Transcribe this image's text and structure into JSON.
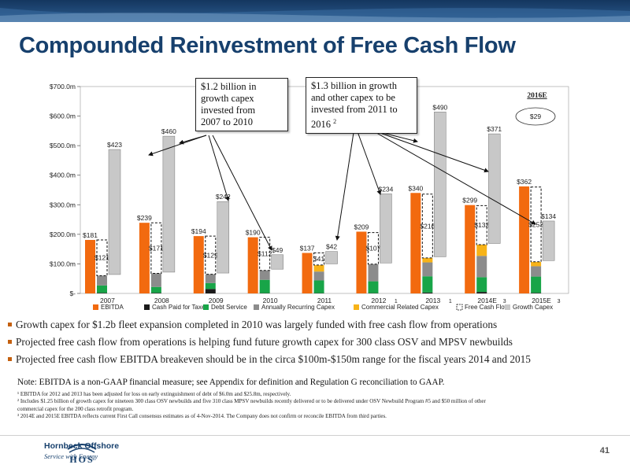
{
  "colors": {
    "title": "#17406d",
    "ebitda": "#f26a0f",
    "cash_paid_taxes": "#1a1a1a",
    "debt_service": "#18a548",
    "annually_recurring_capex": "#8c8c8c",
    "commercial_related_capex": "#f7b318",
    "growth_capex": "#c8c8c8",
    "bullet": "#c4600f"
  },
  "title": "Compounded Reinvestment of Free Cash Flow",
  "chart_data": {
    "type": "bar",
    "subtype": "waterfall",
    "ylim": [
      0,
      700
    ],
    "yticks": [
      "$-",
      "$100.0m",
      "$200.0m",
      "$300.0m",
      "$400.0m",
      "$500.0m",
      "$600.0m",
      "$700.0m"
    ],
    "categories": [
      {
        "label": "2007",
        "sup": ""
      },
      {
        "label": "2008",
        "sup": ""
      },
      {
        "label": "2009",
        "sup": ""
      },
      {
        "label": "2010",
        "sup": ""
      },
      {
        "label": "2011",
        "sup": ""
      },
      {
        "label": "2012",
        "sup": "1"
      },
      {
        "label": "2013",
        "sup": "1"
      },
      {
        "label": "2014E",
        "sup": "3"
      },
      {
        "label": "2015E",
        "sup": "3"
      }
    ],
    "ebitda": [
      181,
      239,
      194,
      190,
      137,
      209,
      340,
      299,
      362
    ],
    "ebitda_labels": [
      "$181",
      "$239",
      "$194",
      "$190",
      "$137",
      "$209",
      "$340",
      "$299",
      "$362"
    ],
    "cash_paid_taxes": [
      2,
      2,
      15,
      1,
      1,
      1,
      3,
      5,
      2
    ],
    "debt_service": [
      25,
      20,
      20,
      45,
      43,
      40,
      55,
      50,
      55
    ],
    "annually_recurring_capex": [
      33,
      46,
      30,
      32,
      30,
      58,
      47,
      72,
      35
    ],
    "commercial_related_capex": [
      0,
      0,
      0,
      0,
      22,
      0,
      15,
      38,
      15
    ],
    "free_cash_flow": [
      121,
      171,
      129,
      112,
      41,
      107,
      216,
      132,
      253
    ],
    "free_cash_flow_labels": [
      "$121",
      "$171",
      "$129",
      "$112",
      "$41",
      "$107",
      "$216",
      "$132",
      "$253"
    ],
    "growth_capex": [
      423,
      460,
      242,
      49,
      42,
      234,
      490,
      371,
      134
    ],
    "growth_capex_labels": [
      "$423",
      "$460",
      "$242",
      "$49",
      "$42",
      "$234",
      "$490",
      "$371",
      "$134"
    ],
    "legend": [
      "EBITDA",
      "Cash Paid for Taxes",
      "Debt Service",
      "Annually Recurring Capex",
      "Commercial Related Capex",
      "Free Cash Flow",
      "Growth Capex"
    ],
    "legend_position": "bottom",
    "grid": false,
    "annotation_2016": {
      "label": "2016E",
      "value": "$29"
    }
  },
  "callouts": {
    "left": [
      "$1.2 billion in",
      "growth capex",
      "invested from",
      "2007 to 2010"
    ],
    "right": [
      "$1.3 billion in growth",
      "and other capex to be",
      "invested from 2011 to",
      "2016"
    ],
    "right_sup": "2"
  },
  "bullets": [
    "Growth capex for $1.2b fleet expansion completed in 2010 was largely funded with free cash flow from operations",
    "Projected free cash flow from operations is helping fund future growth capex for 300 class OSV and MPSV newbuilds",
    "Projected free cash flow EBITDA breakeven should be in the circa $100m-$150m range for the fiscal years 2014 and 2015"
  ],
  "note": "Note:  EBITDA is a non-GAAP financial measure; see Appendix for definition and Regulation G reconciliation to GAAP.",
  "footnotes": [
    "¹ EBITDA for 2012 and 2013 has been adjusted for loss on early extinguishment of debt of $6.0m and $25.8m, respectively.",
    "² Includes $1.25 billion of growth capex for nineteen 300 class OSV newbuilds and five 310 class MPSV newbuilds recently delivered or to be delivered under OSV Newbuild Program #5 and $50 million of other",
    "   commercial capex for the 200 class retrofit program.",
    "³ 2014E and 2015E EBITDA reflects current First Call consensus estimates as of 4-Nov-2014.  The Company does not confirm or reconcile EBITDA from third parties."
  ],
  "footer": {
    "logo_text": "HOS",
    "company": "Hornbeck Offshore",
    "tagline": "Service with Energy",
    "page_number": "41"
  }
}
